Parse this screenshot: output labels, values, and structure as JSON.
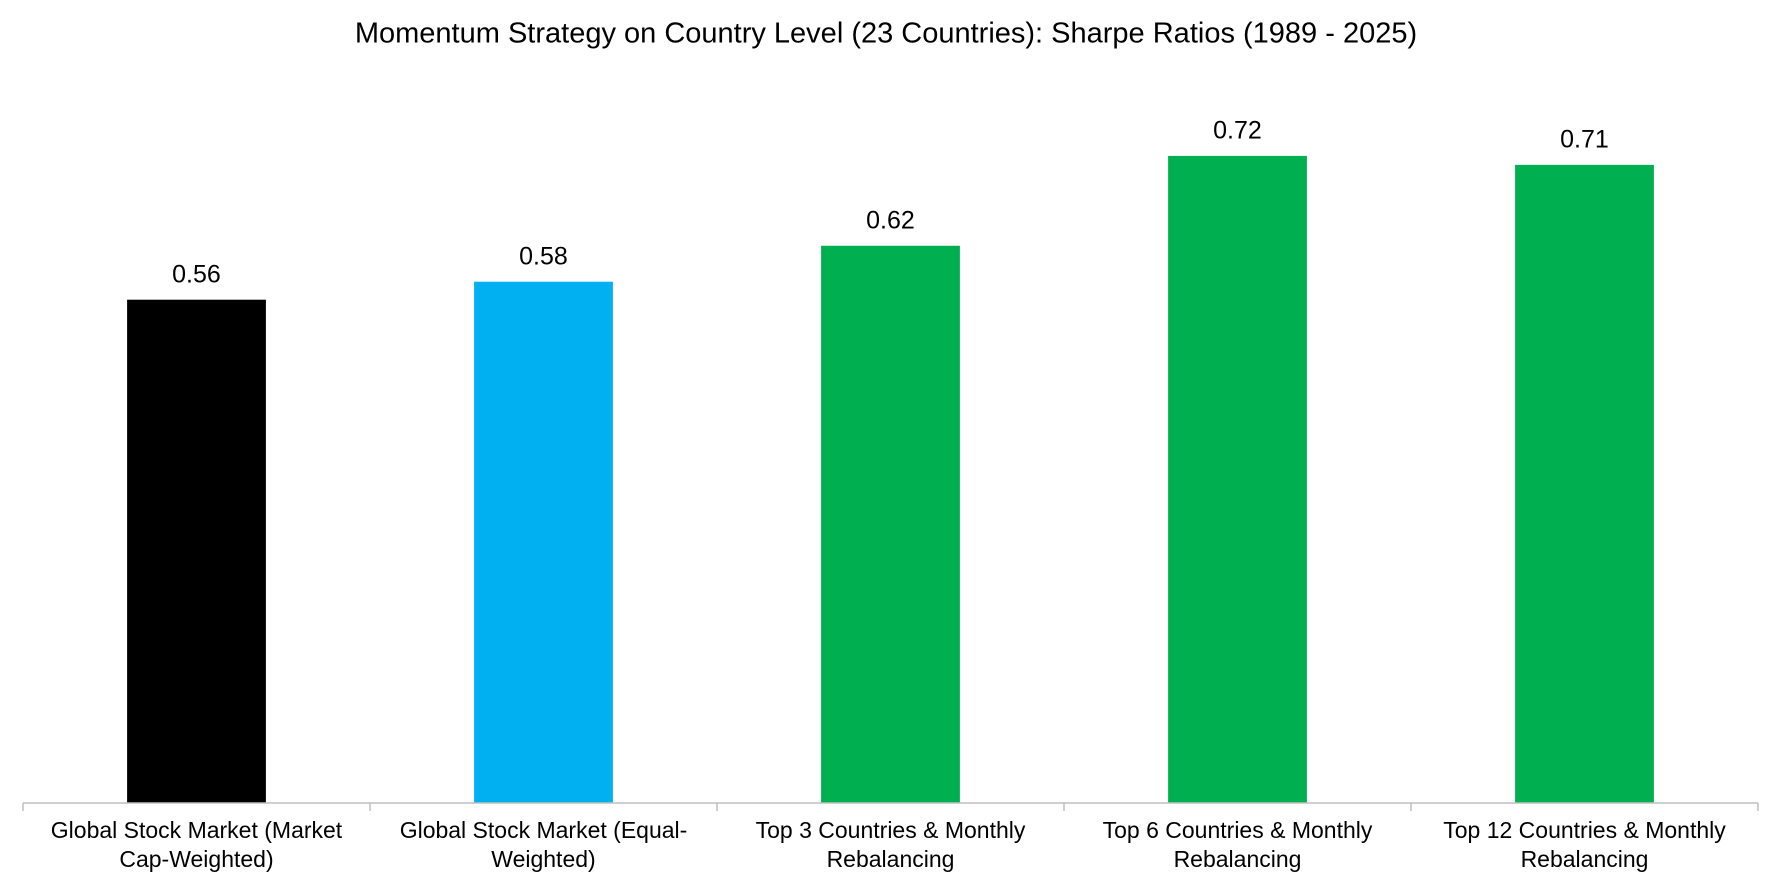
{
  "chart_data": {
    "type": "bar",
    "title": "Momentum Strategy on Country Level (23 Countries): Sharpe Ratios (1989 - 2025)",
    "categories": [
      "Global Stock Market (Market Cap-Weighted)",
      "Global Stock Market (Equal-Weighted)",
      "Top 3 Countries & Monthly Rebalancing",
      "Top 6 Countries & Monthly Rebalancing",
      "Top 12 Countries & Monthly Rebalancing"
    ],
    "values": [
      0.56,
      0.58,
      0.62,
      0.72,
      0.71
    ],
    "colors": [
      "#000000",
      "#00b0f0",
      "#00b050",
      "#00b050",
      "#00b050"
    ],
    "ylim": [
      0,
      0.8
    ]
  }
}
